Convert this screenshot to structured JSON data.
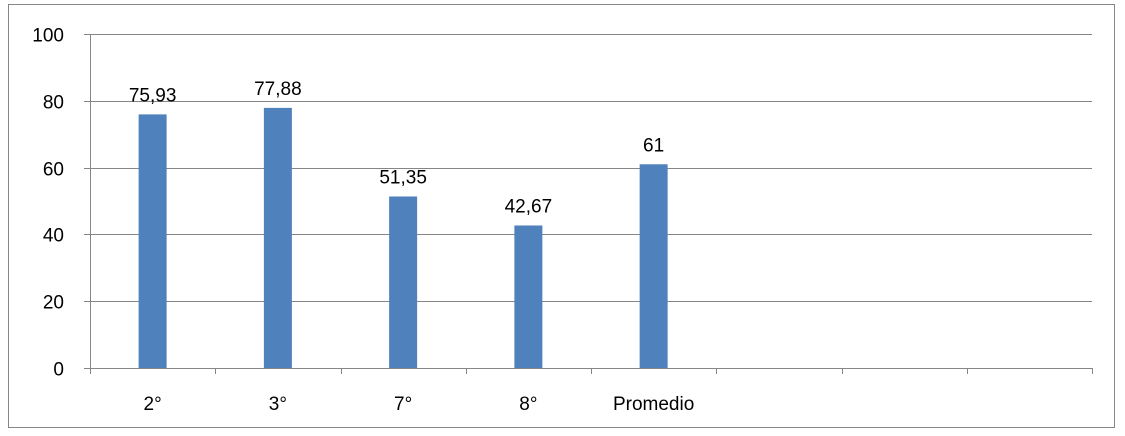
{
  "chart_data": {
    "type": "bar",
    "categories": [
      "2°",
      "3°",
      "7°",
      "8°",
      "Promedio",
      "",
      "",
      ""
    ],
    "values": [
      75.93,
      77.88,
      51.35,
      42.67,
      61,
      null,
      null,
      null
    ],
    "data_labels": [
      "75,93",
      "77,88",
      "51,35",
      "42,67",
      "61",
      "",
      "",
      ""
    ],
    "y_ticks": [
      0,
      20,
      40,
      60,
      80,
      100
    ],
    "ylim": [
      0,
      100
    ],
    "grid": true,
    "legend": "none",
    "title": "",
    "xlabel": "",
    "ylabel": "",
    "colors": {
      "bar": "#4f81bd",
      "grid": "#868686",
      "axis": "#868686",
      "border": "#868686"
    }
  }
}
